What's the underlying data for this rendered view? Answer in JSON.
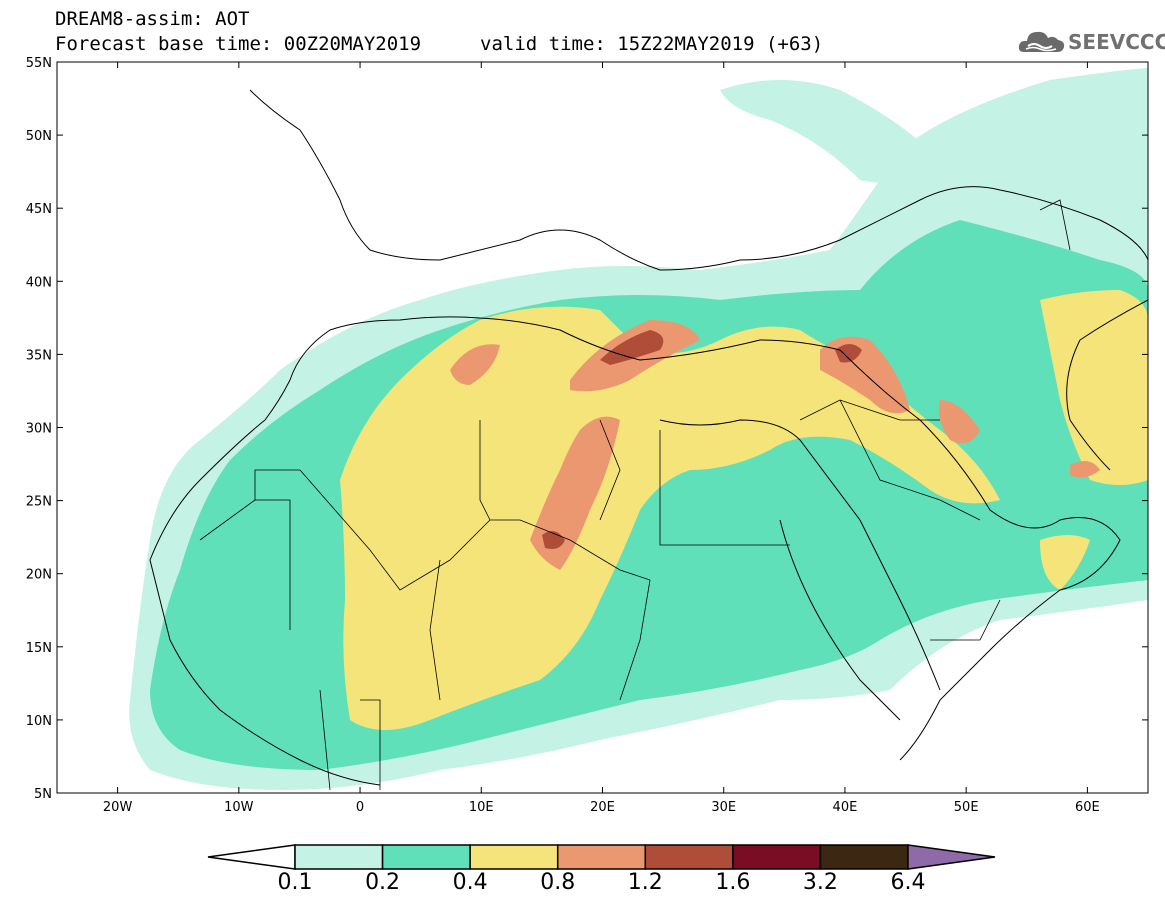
{
  "header": {
    "title": "DREAM8-assim: AOT",
    "base_time": "Forecast base time: 00Z20MAY2019",
    "valid_time": "valid time: 15Z22MAY2019 (+63)"
  },
  "logo": {
    "icon": "cloud-icon",
    "text": "SEEVCCC"
  },
  "map": {
    "lat_ticks": [
      "55N",
      "50N",
      "45N",
      "40N",
      "35N",
      "30N",
      "25N",
      "20N",
      "15N",
      "10N",
      "5N"
    ],
    "lon_ticks": [
      "20W",
      "10W",
      "0",
      "10E",
      "20E",
      "30E",
      "40E",
      "50E",
      "60E"
    ],
    "lon_range": [
      -25,
      65
    ],
    "lat_range": [
      5,
      55
    ]
  },
  "colorbar": {
    "labels": [
      "0.1",
      "0.2",
      "0.4",
      "0.8",
      "1.2",
      "1.6",
      "3.2",
      "6.4"
    ],
    "colors": [
      "#ffffff",
      "#c4f2e4",
      "#5fe0b8",
      "#f5e47a",
      "#eb9870",
      "#b04d38",
      "#7a0c24",
      "#3c2812",
      "#8f6aa8"
    ]
  }
}
